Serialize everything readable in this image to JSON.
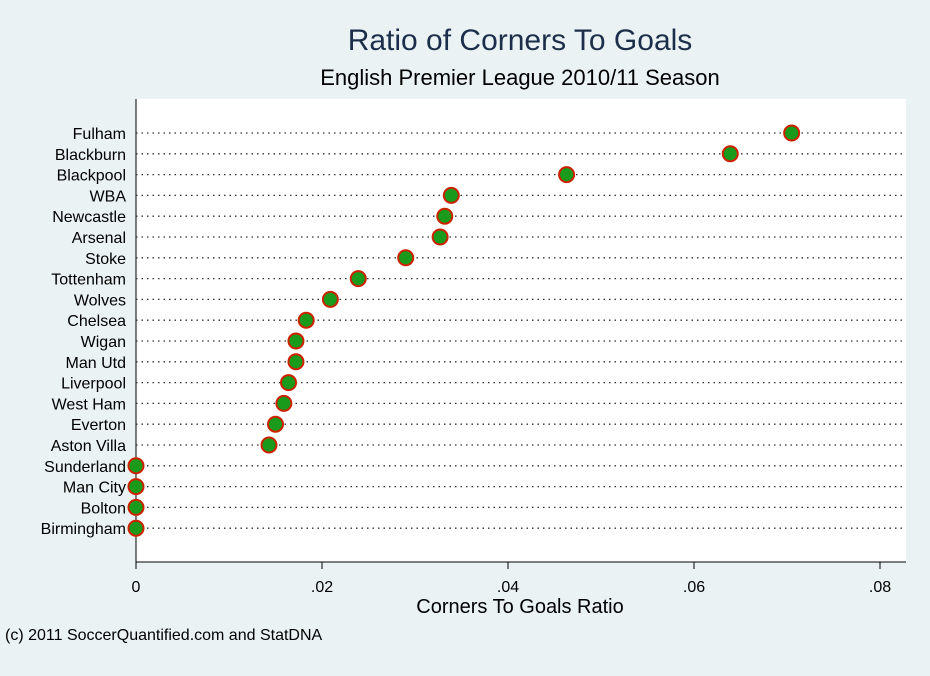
{
  "chart_data": {
    "type": "scatter",
    "title": "Ratio of Corners To Goals",
    "subtitle": "English Premier League 2010/11 Season",
    "xlabel": "Corners To Goals Ratio",
    "xlim": [
      0,
      0.083
    ],
    "xticks": [
      {
        "value": 0,
        "label": "0"
      },
      {
        "value": 0.02,
        "label": ".02"
      },
      {
        "value": 0.04,
        "label": ".04"
      },
      {
        "value": 0.06,
        "label": ".06"
      },
      {
        "value": 0.08,
        "label": ".08"
      }
    ],
    "grid": "dotted horizontal lines per category",
    "categories": [
      "Fulham",
      "Blackburn",
      "Blackpool",
      "WBA",
      "Newcastle",
      "Arsenal",
      "Stoke",
      "Tottenham",
      "Wolves",
      "Chelsea",
      "Wigan",
      "Man Utd",
      "Liverpool",
      "West Ham",
      "Everton",
      "Aston Villa",
      "Sunderland",
      "Man City",
      "Bolton",
      "Birmingham"
    ],
    "values": [
      0.0705,
      0.0639,
      0.0463,
      0.0339,
      0.0332,
      0.0327,
      0.029,
      0.0239,
      0.0209,
      0.0183,
      0.0172,
      0.0172,
      0.0164,
      0.0159,
      0.015,
      0.0143,
      0,
      0,
      0,
      0
    ],
    "marker_fill": "#1a9a1a",
    "marker_edge": "#cc2200"
  },
  "footer": {
    "credit": "(c) 2011 SoccerQuantified.com and StatDNA"
  }
}
